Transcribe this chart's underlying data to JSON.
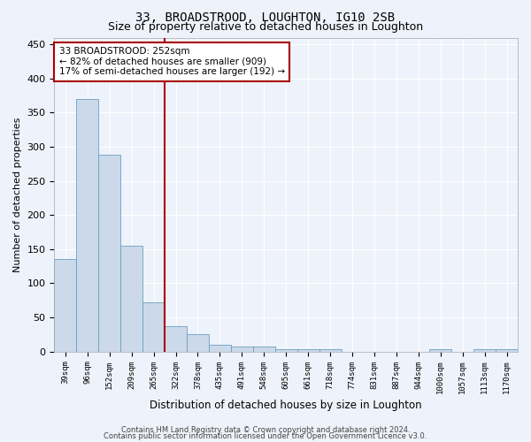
{
  "title": "33, BROADSTROOD, LOUGHTON, IG10 2SB",
  "subtitle": "Size of property relative to detached houses in Loughton",
  "xlabel": "Distribution of detached houses by size in Loughton",
  "ylabel": "Number of detached properties",
  "bar_labels": [
    "39sqm",
    "96sqm",
    "152sqm",
    "209sqm",
    "265sqm",
    "322sqm",
    "378sqm",
    "435sqm",
    "491sqm",
    "548sqm",
    "605sqm",
    "661sqm",
    "718sqm",
    "774sqm",
    "831sqm",
    "887sqm",
    "944sqm",
    "1000sqm",
    "1057sqm",
    "1113sqm",
    "1170sqm"
  ],
  "bar_values": [
    135,
    370,
    288,
    155,
    72,
    37,
    26,
    10,
    8,
    7,
    4,
    4,
    4,
    0,
    0,
    0,
    0,
    4,
    0,
    4,
    4
  ],
  "bar_color": "#ccd9ea",
  "bar_edgecolor": "#6a9fc0",
  "vline_color": "#aa0000",
  "vline_pos": 4.5,
  "ylim": [
    0,
    460
  ],
  "yticks": [
    0,
    50,
    100,
    150,
    200,
    250,
    300,
    350,
    400,
    450
  ],
  "annotation_text": "33 BROADSTROOD: 252sqm\n← 82% of detached houses are smaller (909)\n17% of semi-detached houses are larger (192) →",
  "annotation_box_facecolor": "#ffffff",
  "annotation_box_edgecolor": "#aa0000",
  "footer_line1": "Contains HM Land Registry data © Crown copyright and database right 2024.",
  "footer_line2": "Contains public sector information licensed under the Open Government Licence v3.0.",
  "background_color": "#eef2fa",
  "grid_color": "#ffffff",
  "title_fontsize": 10,
  "subtitle_fontsize": 9
}
